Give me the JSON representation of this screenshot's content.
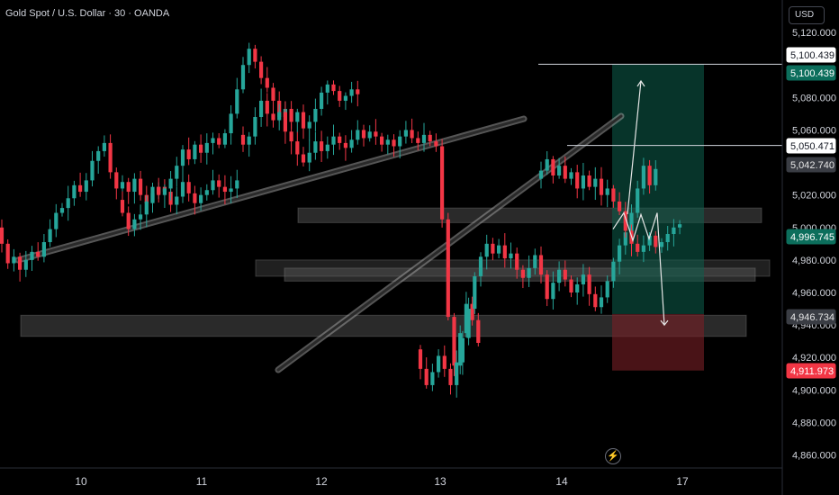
{
  "header": {
    "title": "Gold Spot / U.S. Dollar · 30 · OANDA",
    "currency": "USD"
  },
  "colors": {
    "up": "#26a69a",
    "down": "#f23645",
    "background": "#000000",
    "axis_text": "#d1d4dc",
    "zone": "#5d5d5d",
    "target_zone": "#0c5e4d",
    "stop_zone": "#7a1f26"
  },
  "icons": {
    "replay": "lightning-icon"
  },
  "chart_data": {
    "type": "candlestick",
    "title": "Gold Spot / U.S. Dollar · 30 · OANDA",
    "y_ticks": [
      5120,
      5080,
      5060,
      5020,
      5000,
      4980,
      4960,
      4940,
      4920,
      4900,
      4880,
      4860
    ],
    "y_tick_labels": [
      "5,120.000",
      "5,080.000",
      "5,060.000",
      "5,020.000",
      "5,000.000",
      "4,980.000",
      "4,960.000",
      "4,940.000",
      "4,920.000",
      "4,900.000",
      "4,880.000",
      "4,860.000"
    ],
    "ylim": [
      4852,
      5140
    ],
    "x_ticks": [
      "10",
      "11",
      "12",
      "13",
      "14",
      "17"
    ],
    "price_labels": [
      {
        "value": "5,100.439",
        "price": 5100.439,
        "style": "white"
      },
      {
        "value": "5,100.439",
        "price": 5100.439,
        "style": "teal"
      },
      {
        "value": "5,050.471",
        "price": 5050.471,
        "style": "white"
      },
      {
        "value": "5,042.740",
        "price": 5042.74,
        "style": "grey"
      },
      {
        "value": "4,996.745",
        "price": 4996.745,
        "style": "teal"
      },
      {
        "value": "4,946.734",
        "price": 4946.734,
        "style": "grey"
      },
      {
        "value": "4,911.973",
        "price": 4911.973,
        "style": "red"
      }
    ],
    "horizontal_lines": [
      5100.439,
      5050.471
    ],
    "position": {
      "target": 5100.439,
      "entry": 4946.734,
      "stop": 4911.973
    },
    "zones": [
      {
        "low": 5003,
        "high": 5012
      },
      {
        "low": 4970,
        "high": 4980
      },
      {
        "low": 4967,
        "high": 4975
      },
      {
        "low": 4933,
        "high": 4946
      }
    ],
    "segments": [
      {
        "day": "10",
        "open": 5000,
        "steps": [
          -10,
          -12,
          4,
          -8,
          6,
          5,
          -3,
          9,
          8,
          10,
          3,
          6,
          8,
          -4,
          7,
          12,
          6,
          5,
          -18,
          -10,
          4,
          -6,
          8,
          -10,
          -5,
          6,
          4,
          -3,
          -8,
          5,
          9,
          -7,
          -6,
          5,
          3,
          6,
          -4,
          -3,
          2,
          5
        ]
      },
      {
        "day": "11",
        "open": 5017,
        "steps": [
          -8,
          -10,
          6,
          3,
          8,
          9,
          -5,
          4,
          6,
          8,
          10,
          -6,
          9,
          -5,
          6,
          3,
          -4,
          7,
          12,
          15,
          15,
          10,
          -8,
          -10,
          -6,
          -8,
          -10,
          5,
          -8,
          6,
          -10,
          4,
          8,
          10,
          5,
          -4,
          -6,
          3,
          4,
          -3
        ]
      },
      {
        "day": "12",
        "open": 5057,
        "steps": [
          -6,
          5,
          12,
          10,
          -8,
          -4,
          5,
          -12,
          -6,
          -8,
          -5,
          6,
          7,
          -6,
          4,
          5,
          -4,
          -3,
          5,
          6,
          -5,
          4,
          -3,
          -5,
          3,
          -4,
          6,
          4,
          -5,
          -3,
          5,
          -4,
          -3,
          -45,
          -60,
          -30,
          20,
          18,
          -10,
          -14
        ]
      },
      {
        "day": "13",
        "open": 4925,
        "steps": [
          -12,
          -10,
          8,
          10,
          -8,
          -10,
          14,
          15,
          18,
          20,
          12,
          8,
          -6,
          5,
          -8,
          3,
          -10,
          -5,
          6,
          8,
          -12,
          -15,
          10,
          8,
          -6,
          -8,
          5,
          6,
          -12,
          -8,
          6,
          10,
          12,
          10,
          8,
          12,
          15,
          14,
          -12,
          10
        ]
      },
      {
        "day": "14",
        "open": 5030,
        "steps": [
          5,
          7,
          -10,
          6,
          -8,
          4,
          -10,
          8,
          -7,
          5,
          -10,
          4,
          -8,
          -6,
          -12,
          -8,
          -5,
          4,
          6,
          -7,
          3,
          5,
          4,
          2
        ]
      }
    ],
    "trend_lines": [
      {
        "from": [
          "10",
          4980
        ],
        "to": [
          "12",
          5065
        ]
      },
      {
        "from": [
          "12",
          4920
        ],
        "to": [
          "14",
          5065
        ]
      }
    ],
    "projection": [
      4999,
      5009,
      4992,
      5008,
      4993,
      5009,
      4940
    ]
  }
}
